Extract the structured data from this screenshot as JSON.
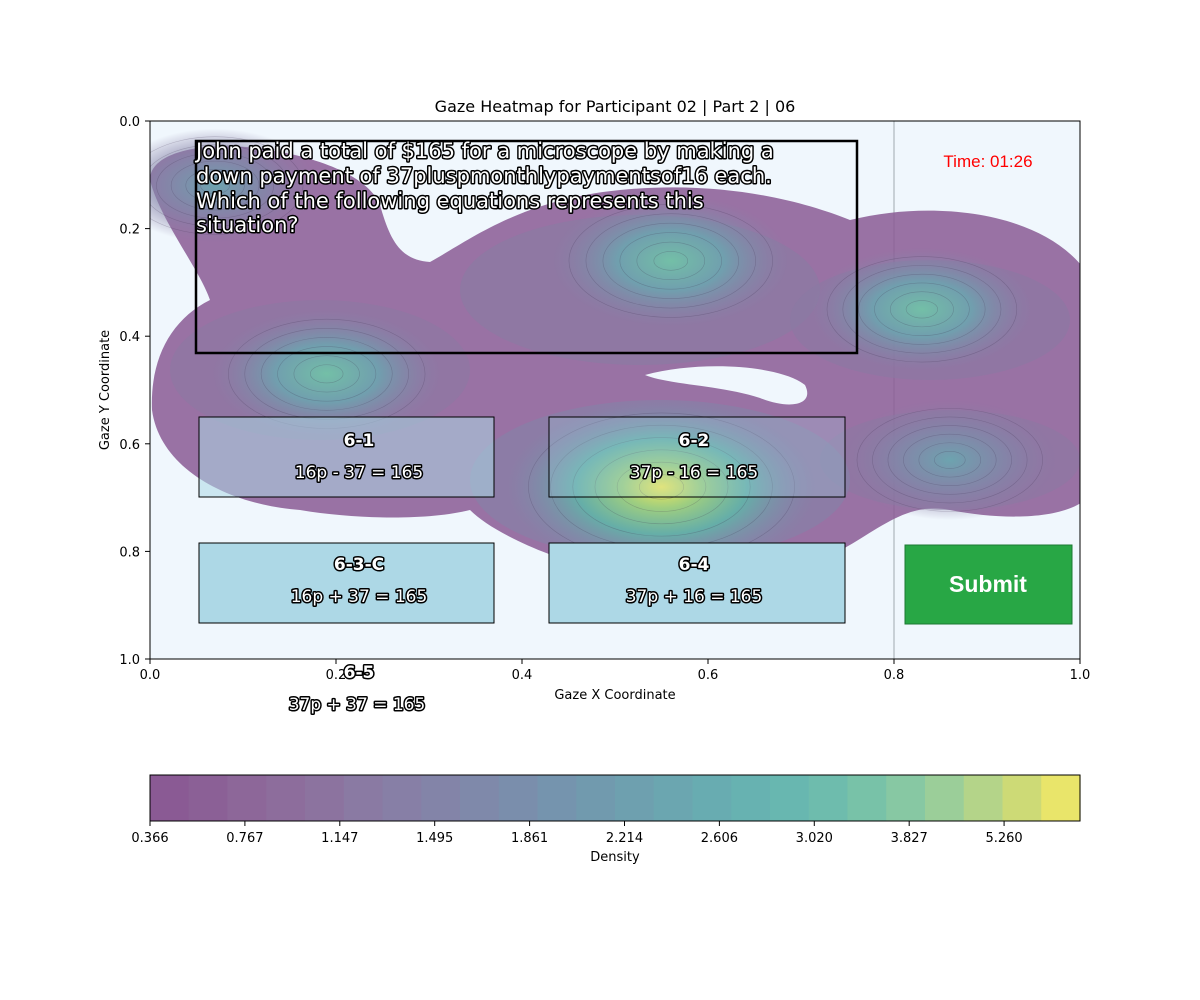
{
  "chart_data": {
    "type": "heatmap",
    "title": "Gaze Heatmap for Participant 02 | Part 2 | 06",
    "xlabel": "Gaze X Coordinate",
    "ylabel": "Gaze Y Coordinate",
    "xlim": [
      0,
      1
    ],
    "ylim": [
      1,
      0
    ],
    "x_ticks": [
      "0.0",
      "0.2",
      "0.4",
      "0.6",
      "0.8",
      "1.0"
    ],
    "y_ticks": [
      "0.0",
      "0.2",
      "0.4",
      "0.6",
      "0.8",
      "1.0"
    ],
    "x_tick_values": [
      0,
      0.2,
      0.4,
      0.6,
      0.8,
      1.0
    ],
    "y_tick_values": [
      0,
      0.2,
      0.4,
      0.6,
      0.8,
      1.0
    ],
    "grid": false,
    "divider_x": 0.8,
    "density_peaks": [
      {
        "x": 0.55,
        "y": 0.68,
        "weight": 1.0
      },
      {
        "x": 0.56,
        "y": 0.26,
        "weight": 0.55
      },
      {
        "x": 0.19,
        "y": 0.47,
        "weight": 0.5
      },
      {
        "x": 0.83,
        "y": 0.35,
        "weight": 0.45
      },
      {
        "x": 0.86,
        "y": 0.63,
        "weight": 0.42
      },
      {
        "x": 0.07,
        "y": 0.12,
        "weight": 0.35
      }
    ],
    "colorbar": {
      "label": "Density",
      "ticks": [
        "0.366",
        "0.767",
        "1.147",
        "1.495",
        "1.861",
        "2.214",
        "2.606",
        "3.020",
        "3.827",
        "5.260"
      ],
      "colors": [
        "#8a5a94",
        "#8b6096",
        "#8d6799",
        "#8d6d9c",
        "#8c739f",
        "#8a7aa3",
        "#877fa6",
        "#8384a8",
        "#7f89aa",
        "#7a8eac",
        "#7594ae",
        "#719aae",
        "#6ea0af",
        "#6ba6b0",
        "#68acb1",
        "#67b2b1",
        "#68b7b0",
        "#6ebcad",
        "#78c2a8",
        "#87c8a3",
        "#9bce99",
        "#b4d489",
        "#cdda76",
        "#e9e56a"
      ]
    },
    "question": {
      "lines": [
        "John paid a total of $165 for a microscope by making a",
        "down payment of 37pluspmonthlypaymentsof16 each.",
        "Which of the following equations represents this",
        "situation?"
      ]
    },
    "timer": "Time: 01:26",
    "submit_label": "Submit",
    "options": [
      {
        "id": "6-1",
        "equation": "16p - 37 = 165"
      },
      {
        "id": "6-2",
        "equation": "37p - 16 = 165"
      },
      {
        "id": "6-3-C",
        "equation": "16p + 37 = 165"
      },
      {
        "id": "6-4",
        "equation": "37p + 16 = 165"
      },
      {
        "id": "6-5",
        "equation": "37p + 37 = 165"
      }
    ],
    "colors": {
      "background": "#f0f7fd",
      "option_fill": "#add8e6",
      "submit_fill": "#28a745",
      "timer_text": "#ff0000"
    }
  }
}
